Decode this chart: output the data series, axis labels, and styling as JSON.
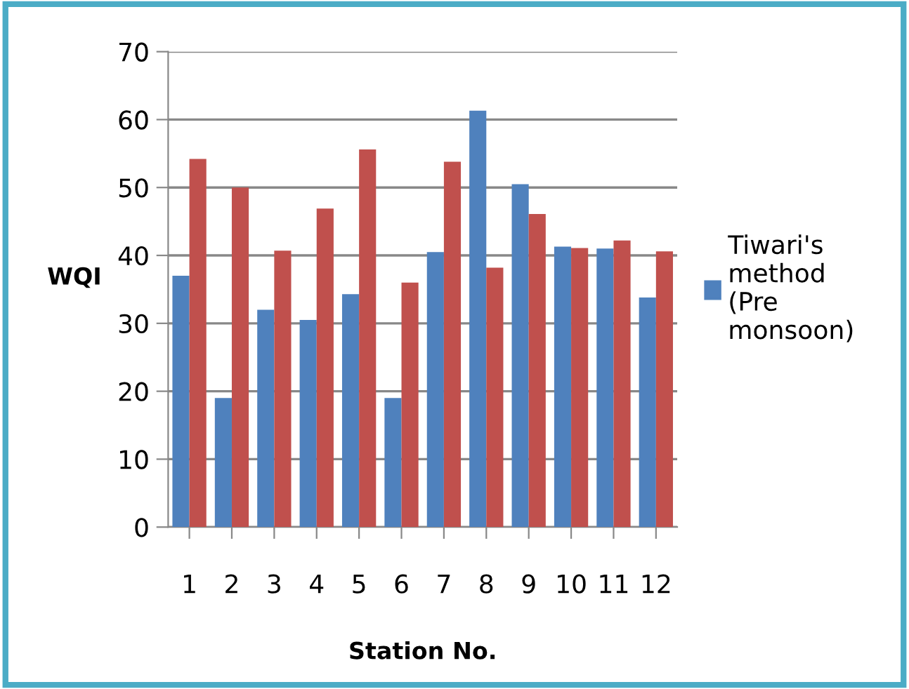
{
  "chart_data": {
    "type": "bar",
    "xlabel": "Station No.",
    "ylabel": "WQI",
    "categories": [
      "1",
      "2",
      "3",
      "4",
      "5",
      "6",
      "7",
      "8",
      "9",
      "10",
      "11",
      "12"
    ],
    "series": [
      {
        "name": "Tiwari's method (Pre monsoon)",
        "color": "#4f81bd",
        "values": [
          37,
          19,
          32,
          30.5,
          34.3,
          19,
          40.5,
          61.3,
          50.5,
          41.3,
          41,
          33.8
        ]
      },
      {
        "color": "#c0504d",
        "values": [
          54.2,
          50,
          40.7,
          46.9,
          55.6,
          36,
          53.8,
          38.2,
          46.1,
          41.1,
          42.2,
          40.6
        ]
      }
    ],
    "ylim": [
      0,
      70
    ],
    "yticks": [
      0,
      10,
      20,
      30,
      40,
      50,
      60,
      70
    ],
    "grid": "y",
    "legend": "right"
  }
}
